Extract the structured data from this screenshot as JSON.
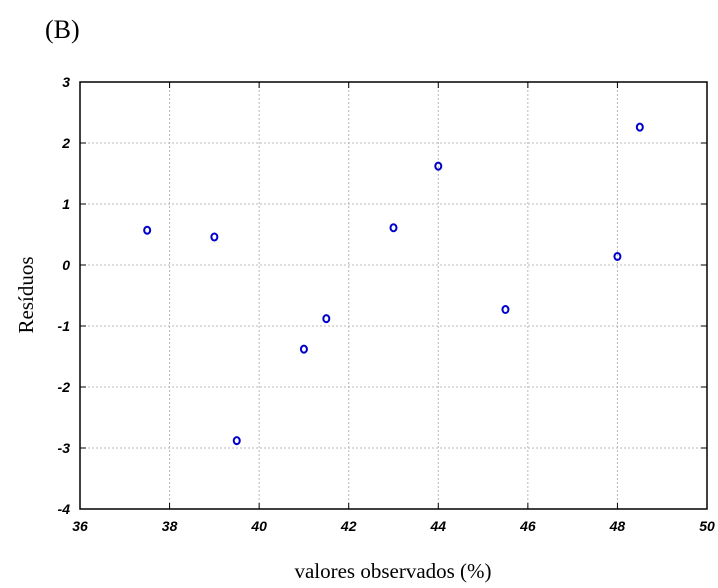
{
  "panel_label": "(B)",
  "chart_data": {
    "type": "scatter",
    "title": "",
    "xlabel": "valores observados (%)",
    "ylabel": "Resíduos",
    "xlim": [
      36,
      50
    ],
    "ylim": [
      -4,
      3
    ],
    "xticks": [
      36,
      38,
      40,
      42,
      44,
      46,
      48,
      50
    ],
    "yticks": [
      -4,
      -3,
      -2,
      -1,
      0,
      1,
      2,
      3
    ],
    "grid": true,
    "marker": "open-circle",
    "marker_color": "#0000cc",
    "points": [
      {
        "x": 37.5,
        "y": 0.57
      },
      {
        "x": 39.0,
        "y": 0.46
      },
      {
        "x": 39.5,
        "y": -2.88
      },
      {
        "x": 41.0,
        "y": -1.38
      },
      {
        "x": 41.5,
        "y": -0.88
      },
      {
        "x": 43.0,
        "y": 0.61
      },
      {
        "x": 44.0,
        "y": 1.62
      },
      {
        "x": 45.5,
        "y": -0.73
      },
      {
        "x": 48.0,
        "y": 0.14
      },
      {
        "x": 48.5,
        "y": 2.26
      }
    ]
  }
}
